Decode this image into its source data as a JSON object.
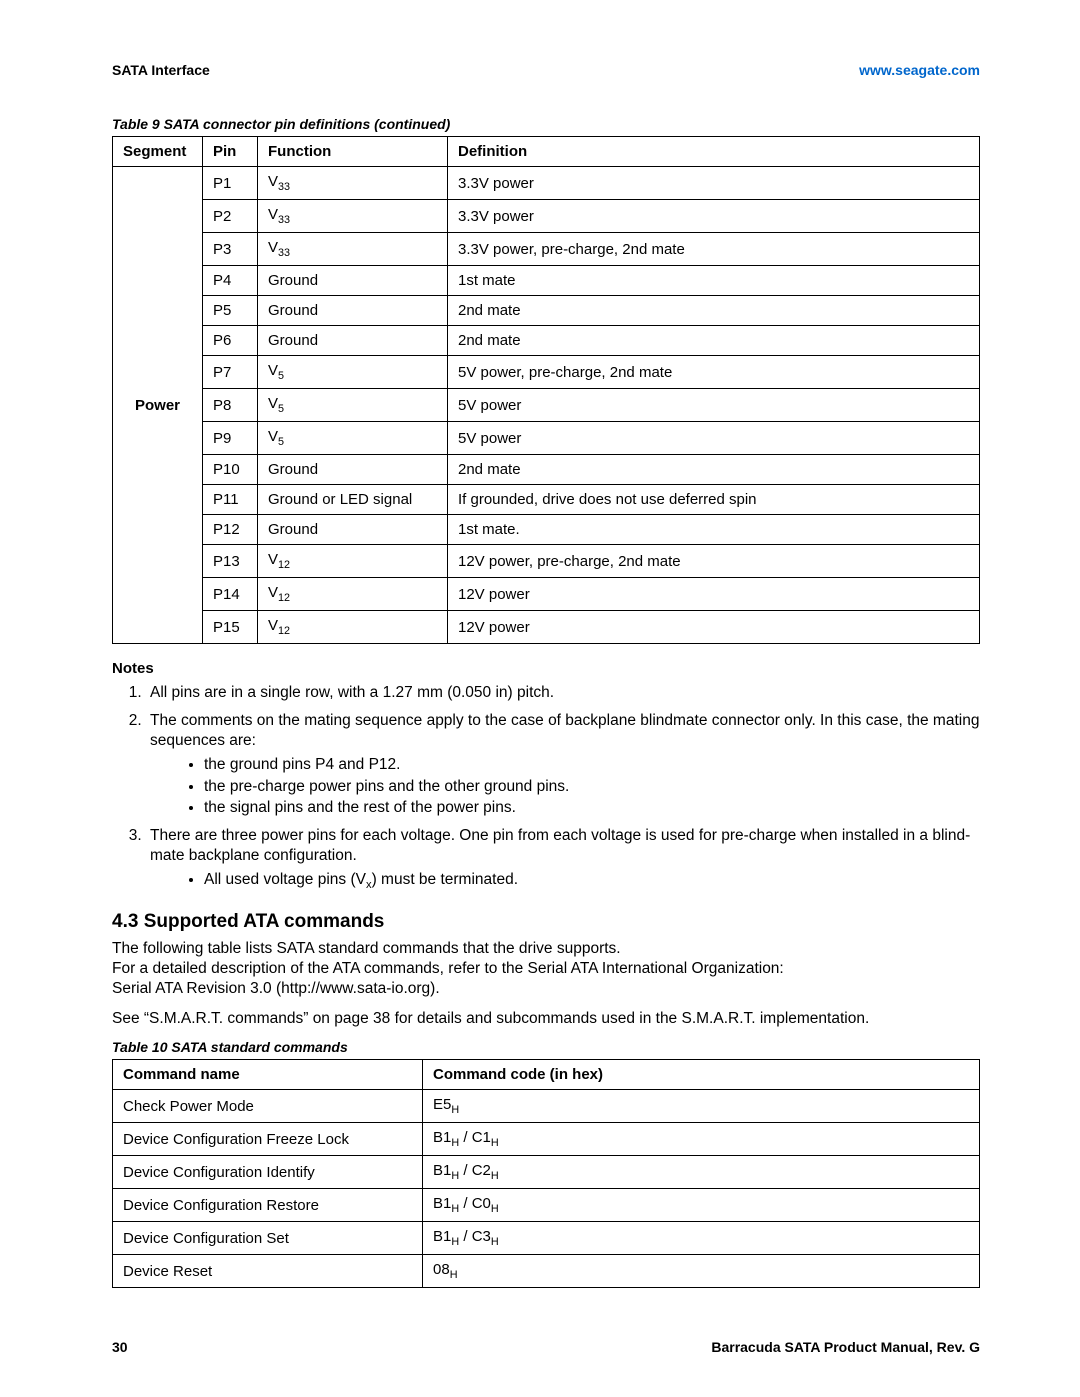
{
  "header": {
    "left": "SATA Interface",
    "right": "www.seagate.com"
  },
  "table1": {
    "caption": "Table 9   SATA connector pin definitions (continued)",
    "headers": [
      "Segment",
      "Pin",
      "Function",
      "Definition"
    ],
    "segment": "Power",
    "rows": [
      {
        "pin": "P1",
        "func": "V",
        "sub": "33",
        "def": "3.3V power"
      },
      {
        "pin": "P2",
        "func": "V",
        "sub": "33",
        "def": "3.3V power"
      },
      {
        "pin": "P3",
        "func": "V",
        "sub": "33",
        "def": "3.3V power, pre-charge, 2nd mate"
      },
      {
        "pin": "P4",
        "func": "Ground",
        "def": "1st mate"
      },
      {
        "pin": "P5",
        "func": "Ground",
        "def": "2nd mate"
      },
      {
        "pin": "P6",
        "func": "Ground",
        "def": "2nd mate"
      },
      {
        "pin": "P7",
        "func": "V",
        "sub": "5",
        "def": "5V power, pre-charge, 2nd mate"
      },
      {
        "pin": "P8",
        "func": "V",
        "sub": "5",
        "def": "5V power"
      },
      {
        "pin": "P9",
        "func": "V",
        "sub": "5",
        "def": "5V power"
      },
      {
        "pin": "P10",
        "func": "Ground",
        "def": "2nd mate"
      },
      {
        "pin": "P11",
        "func": "Ground or LED signal",
        "def": "If grounded, drive does not use deferred spin"
      },
      {
        "pin": "P12",
        "func": "Ground",
        "def": "1st mate."
      },
      {
        "pin": "P13",
        "func": "V",
        "sub": "12",
        "def": "12V power, pre-charge, 2nd mate"
      },
      {
        "pin": "P14",
        "func": "V",
        "sub": "12",
        "def": "12V power"
      },
      {
        "pin": "P15",
        "func": "V",
        "sub": "12",
        "def": "12V power"
      }
    ]
  },
  "notes": {
    "head": "Notes",
    "n1": "All pins are in a single row, with a 1.27 mm (0.050 in) pitch.",
    "n2a": "The comments on the mating sequence apply to the case of backplane blindmate connector only. In this case, the mating sequences are:",
    "n2b1": "the ground pins P4 and P12.",
    "n2b2": "the pre-charge power pins and the other ground pins.",
    "n2b3": "the signal pins and the rest of the power pins.",
    "n3a": "There are three power pins for each voltage. One pin from each voltage is used for pre-charge when installed in a blind-mate backplane configuration.",
    "n3b_pre": "All used voltage pins (V",
    "n3b_sub": "x",
    "n3b_post": ") must be terminated."
  },
  "section": {
    "title": "4.3    Supported ATA commands",
    "p1": "The following table lists SATA standard commands that the drive supports.",
    "p2": "For a detailed description of the ATA commands, refer to the Serial ATA International Organization:",
    "p3": "Serial ATA Revision 3.0 (http://www.sata-io.org).",
    "p4": "See “S.M.A.R.T. commands” on page 38 for details and subcommands used in the S.M.A.R.T. implementation."
  },
  "table2": {
    "caption": "Table 10  SATA standard commands",
    "headers": [
      "Command name",
      "Command code (in hex)"
    ],
    "rows": [
      {
        "name": "Check Power Mode",
        "codes": [
          {
            "t": "E5",
            "s": "H"
          }
        ]
      },
      {
        "name": "Device Configuration Freeze Lock",
        "codes": [
          {
            "t": "B1",
            "s": "H"
          },
          {
            "sep": " / "
          },
          {
            "t": "C1",
            "s": "H"
          }
        ]
      },
      {
        "name": "Device Configuration Identify",
        "codes": [
          {
            "t": "B1",
            "s": "H"
          },
          {
            "sep": " / "
          },
          {
            "t": "C2",
            "s": "H"
          }
        ]
      },
      {
        "name": "Device Configuration Restore",
        "codes": [
          {
            "t": "B1",
            "s": "H"
          },
          {
            "sep": " / "
          },
          {
            "t": "C0",
            "s": "H"
          }
        ]
      },
      {
        "name": "Device Configuration Set",
        "codes": [
          {
            "t": "B1",
            "s": "H"
          },
          {
            "sep": " / "
          },
          {
            "t": "C3",
            "s": "H"
          }
        ]
      },
      {
        "name": "Device Reset",
        "codes": [
          {
            "t": "08",
            "s": "H"
          }
        ]
      }
    ]
  },
  "footer": {
    "page": "30",
    "doc": "Barracuda SATA Product Manual, Rev. G"
  }
}
